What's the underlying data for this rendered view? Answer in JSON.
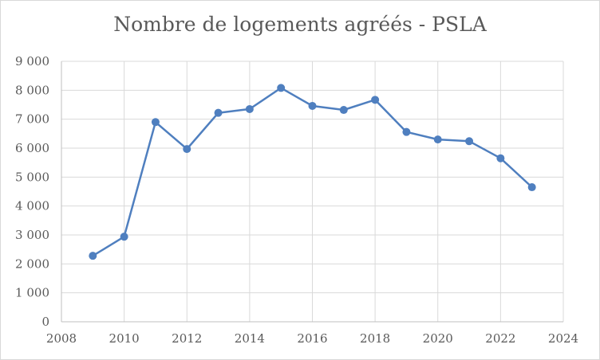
{
  "chart_data": {
    "type": "line",
    "title": "Nombre de logements agréés - PSLA",
    "xlabel": "",
    "ylabel": "",
    "xlim": [
      2008,
      2024
    ],
    "ylim": [
      0,
      9000
    ],
    "x_ticks": [
      "2008",
      "2010",
      "2012",
      "2014",
      "2016",
      "2018",
      "2020",
      "2022",
      "2024"
    ],
    "y_ticks": [
      "0",
      "1 000",
      "2 000",
      "3 000",
      "4 000",
      "5 000",
      "6 000",
      "7 000",
      "8 000",
      "9 000"
    ],
    "grid": true,
    "legend": "none",
    "series": [
      {
        "color": "#4f7fbf",
        "x": [
          2009,
          2010,
          2011,
          2012,
          2013,
          2014,
          2015,
          2016,
          2017,
          2018,
          2019,
          2020,
          2021,
          2022,
          2023
        ],
        "values": [
          2280,
          2940,
          6900,
          5970,
          7220,
          7350,
          8080,
          7460,
          7320,
          7670,
          6560,
          6300,
          6240,
          5650,
          4650
        ]
      }
    ]
  }
}
